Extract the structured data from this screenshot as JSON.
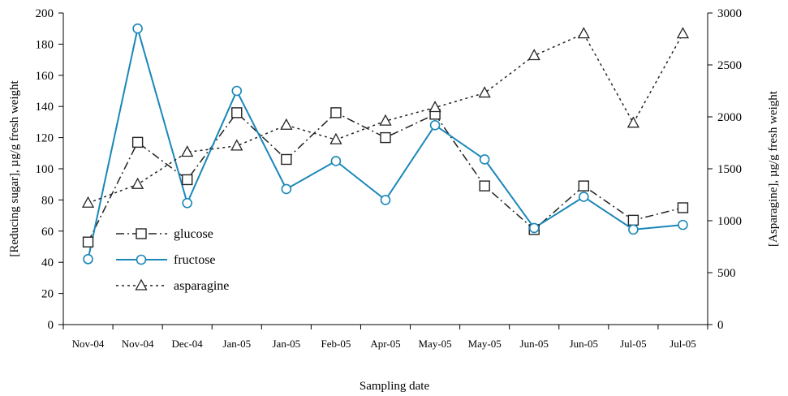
{
  "chart_data": {
    "type": "line",
    "categories": [
      "Nov-04",
      "Nov-04",
      "Dec-04",
      "Jan-05",
      "Jan-05",
      "Feb-05",
      "Apr-05",
      "May-05",
      "May-05",
      "Jun-05",
      "Jun-05",
      "Jul-05",
      "Jul-05"
    ],
    "xlabel": "Sampling date",
    "ylabel_left": "[Reducing sugar], µg/g fresh weight",
    "ylabel_right": "[Asparagine], µg/g fresh weight",
    "ylim_left": [
      0,
      200
    ],
    "ylim_right": [
      0,
      3000
    ],
    "yticks_left": [
      "0",
      "20",
      "40",
      "60",
      "80",
      "100",
      "120",
      "140",
      "160",
      "180",
      "200"
    ],
    "yticks_right": [
      "0",
      "500",
      "1000",
      "1500",
      "2000",
      "2500",
      "3000"
    ],
    "grid": false,
    "legend_position": "bottom-left",
    "series": [
      {
        "name": "glucose",
        "axis": "left",
        "marker": "square",
        "line": "dash-dot",
        "color": "#222222",
        "values": [
          53,
          117,
          93,
          136,
          106,
          136,
          120,
          135,
          89,
          61,
          89,
          67,
          75
        ]
      },
      {
        "name": "fructose",
        "axis": "left",
        "marker": "circle",
        "line": "solid",
        "color": "#1a87b8",
        "values": [
          42,
          190,
          78,
          150,
          87,
          105,
          80,
          128,
          106,
          62,
          82,
          61,
          64
        ]
      },
      {
        "name": "asparagine",
        "axis": "right",
        "marker": "triangle",
        "line": "dotted",
        "color": "#222222",
        "values": [
          1170,
          1350,
          1660,
          1720,
          1920,
          1780,
          1960,
          2090,
          2230,
          2590,
          2800,
          1940,
          2800
        ]
      }
    ]
  }
}
